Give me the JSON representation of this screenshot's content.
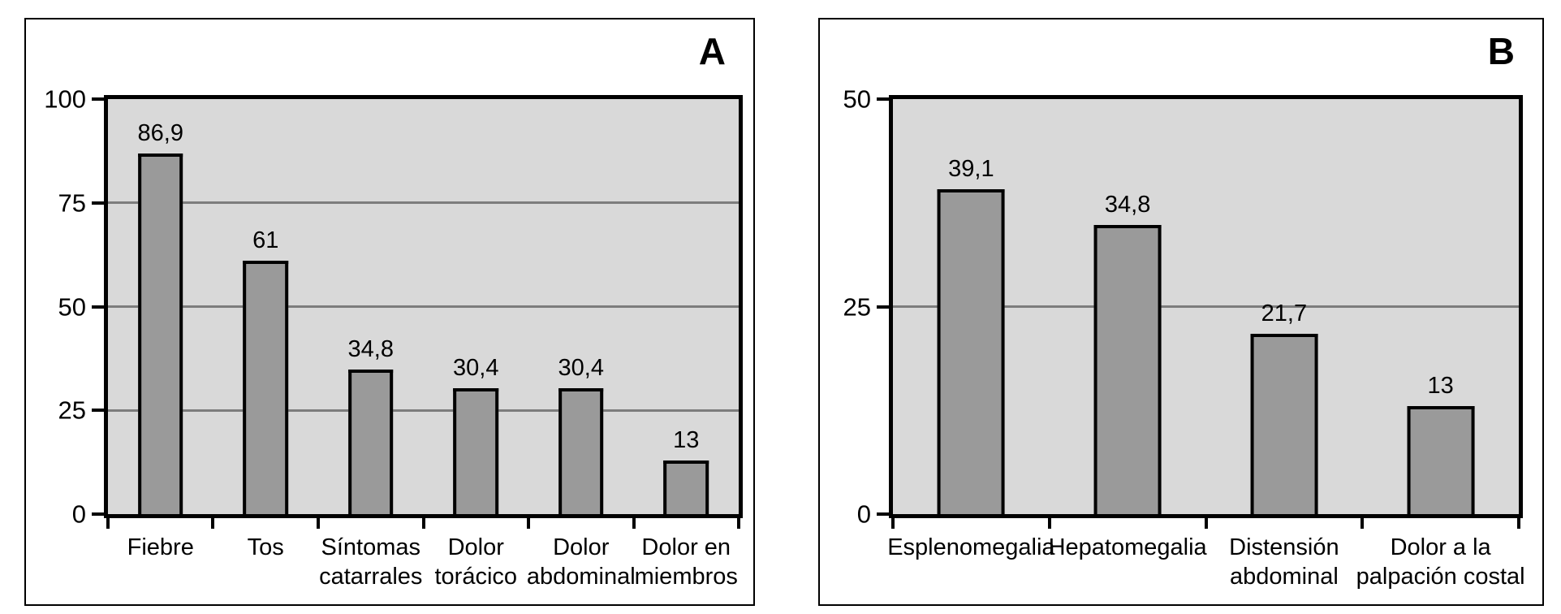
{
  "colors": {
    "plot_background": "#d9d9d9",
    "bar_fill": "#9a9a9a",
    "gridline": "#7d7d7d",
    "axis": "#000000",
    "frame": "#000000",
    "page_background": "#ffffff"
  },
  "chart_data": [
    {
      "type": "bar",
      "panel_label": "A",
      "categories": [
        "Fiebre",
        "Tos",
        "Síntomas\ncatarrales",
        "Dolor\ntorácico",
        "Dolor\nabdominal",
        "Dolor en\nmiembros"
      ],
      "values": [
        86.9,
        61,
        34.8,
        30.4,
        30.4,
        13
      ],
      "value_labels": [
        "86,9",
        "61",
        "34,8",
        "30,4",
        "30,4",
        "13"
      ],
      "title": "",
      "xlabel": "",
      "ylabel": "",
      "ylim": [
        0,
        100
      ],
      "yticks": [
        0,
        25,
        50,
        75,
        100
      ],
      "ytick_labels": [
        "0",
        "25",
        "50",
        "75",
        "100"
      ],
      "grid": true,
      "legend": "none"
    },
    {
      "type": "bar",
      "panel_label": "B",
      "categories": [
        "Esplenomegalia",
        "Hepatomegalia",
        "Distensión\nabdominal",
        "Dolor a la\npalpación costal"
      ],
      "values": [
        39.1,
        34.8,
        21.7,
        13
      ],
      "value_labels": [
        "39,1",
        "34,8",
        "21,7",
        "13"
      ],
      "title": "",
      "xlabel": "",
      "ylabel": "",
      "ylim": [
        0,
        50
      ],
      "yticks": [
        0,
        25,
        50
      ],
      "ytick_labels": [
        "0",
        "25",
        "50"
      ],
      "grid": true,
      "legend": "none"
    }
  ]
}
